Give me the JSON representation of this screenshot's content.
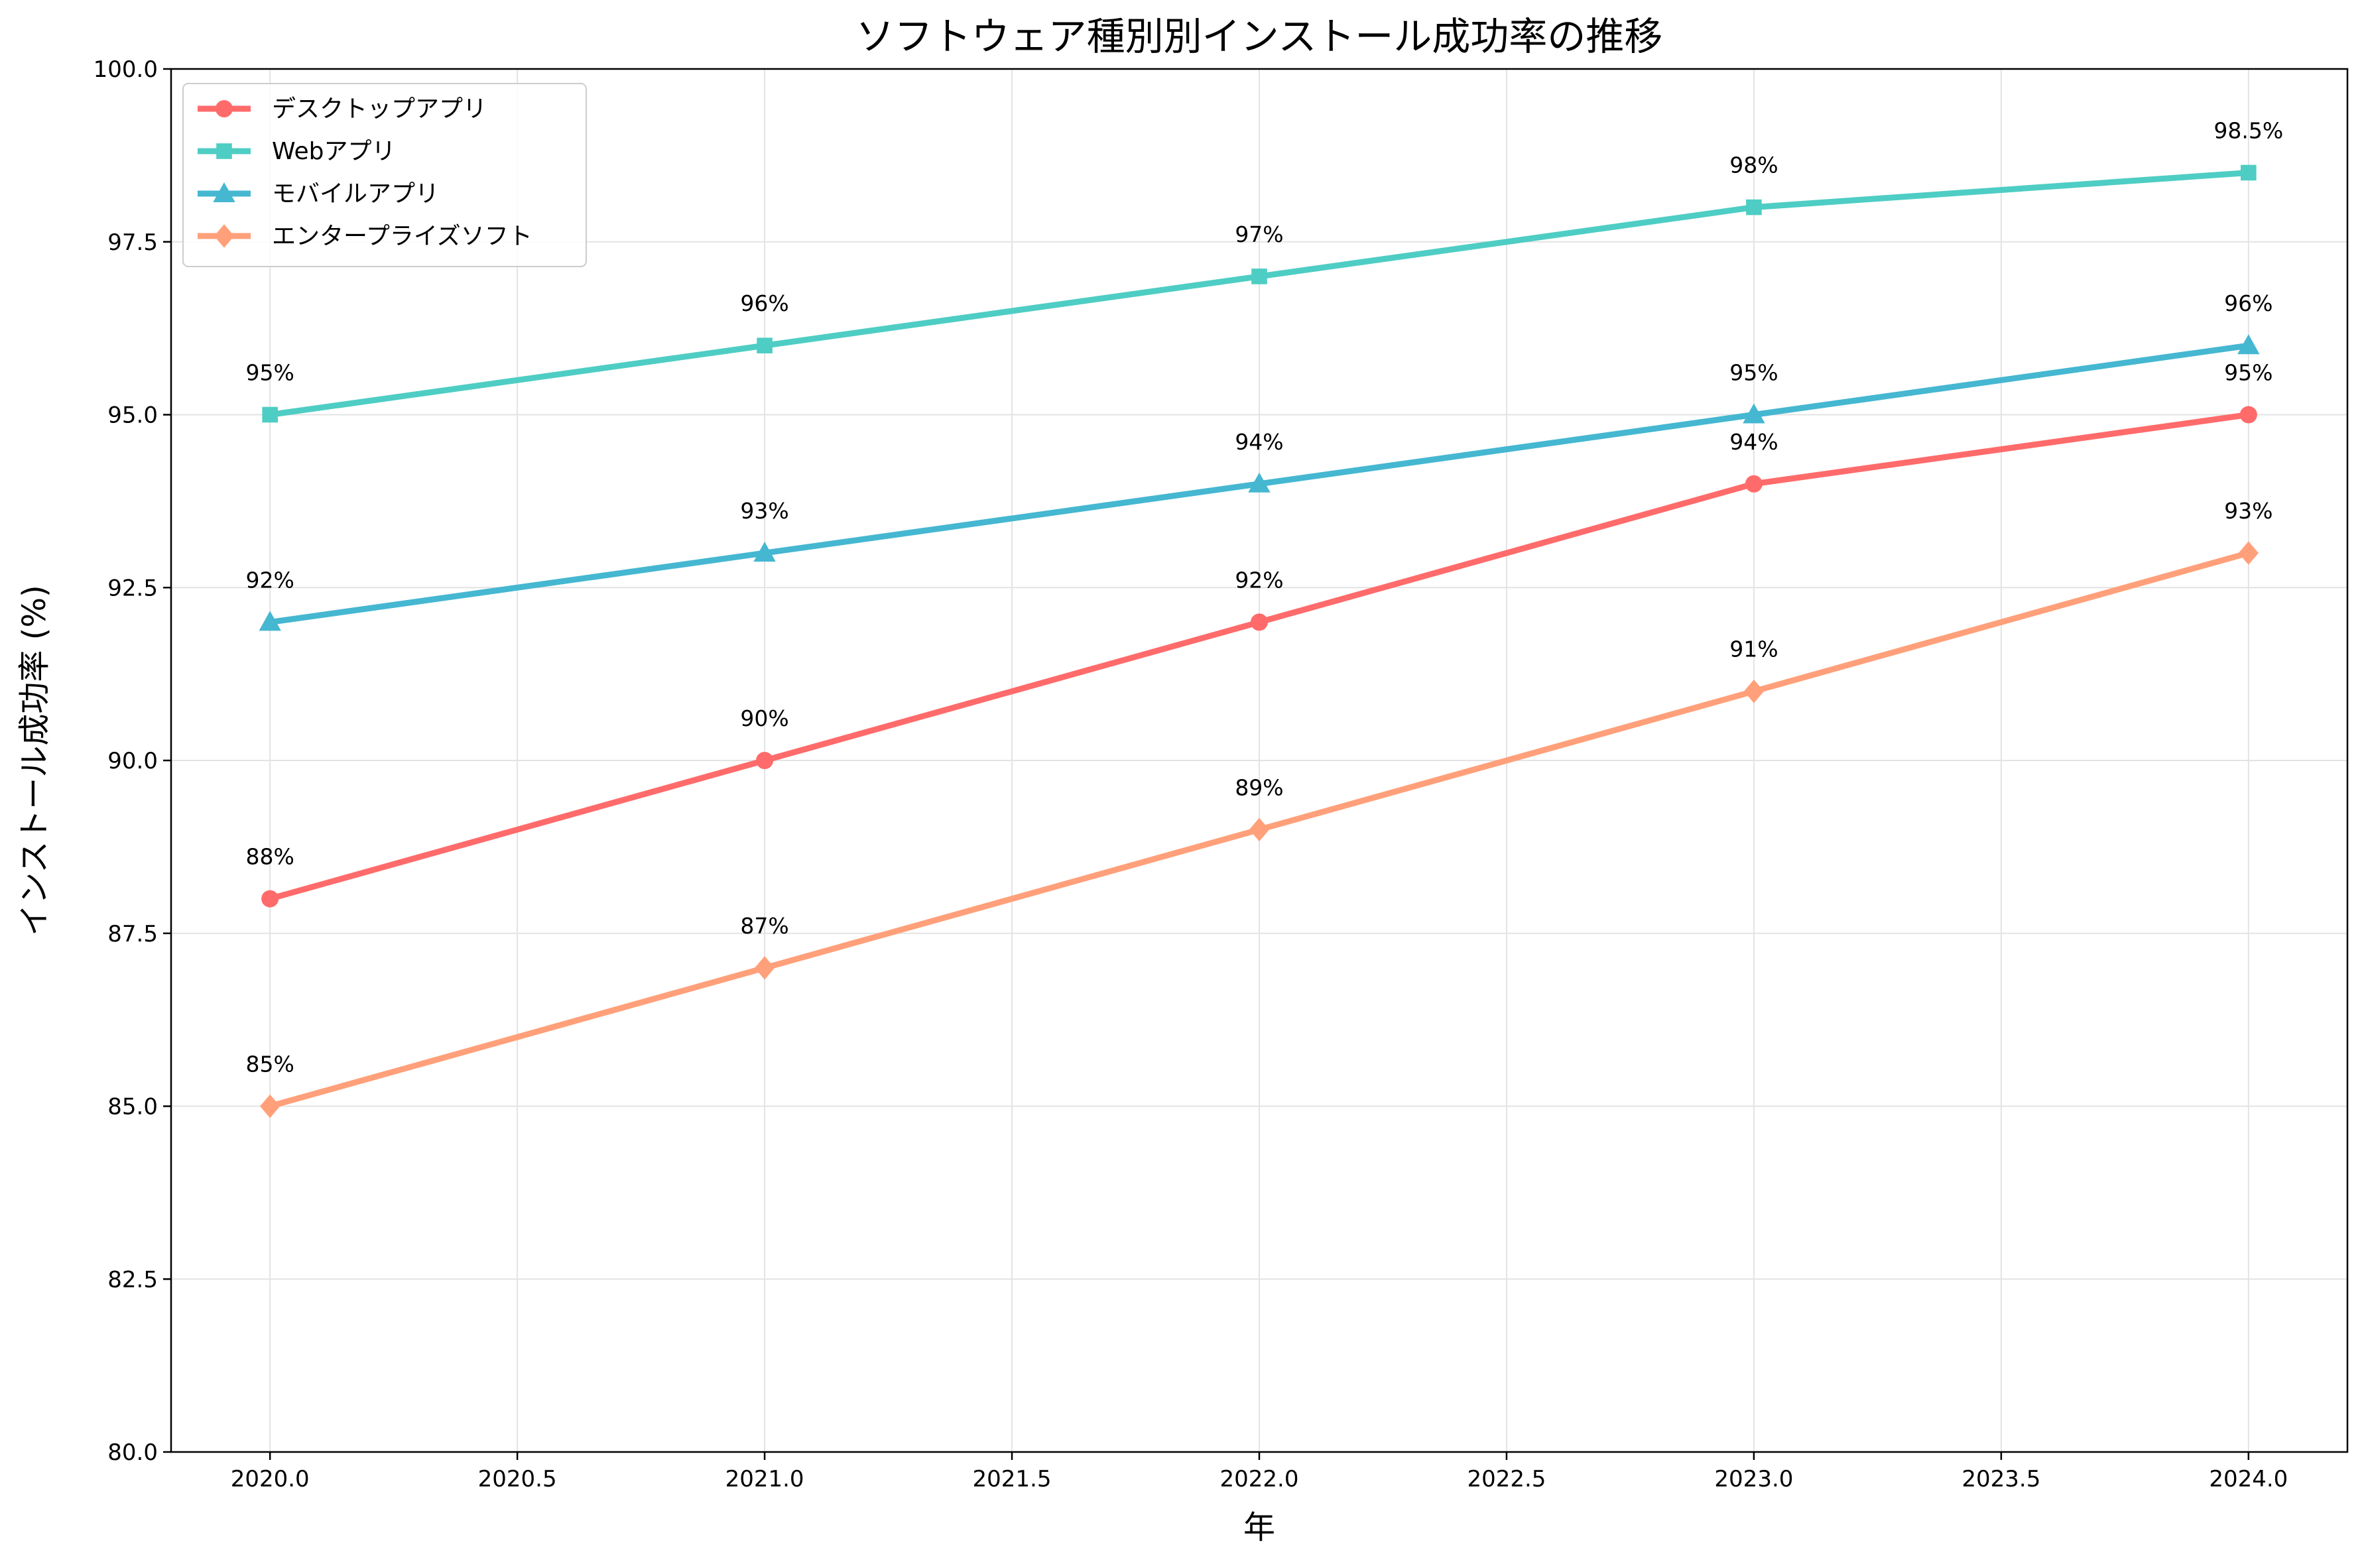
{
  "chart_data": {
    "type": "line",
    "title": "ソフトウェア種別別インストール成功率の推移",
    "xlabel": "年",
    "ylabel": "インストール成功率 (%)",
    "x": [
      2020,
      2021,
      2022,
      2023,
      2024
    ],
    "xlim": [
      2019.8,
      2024.2
    ],
    "ylim": [
      80,
      100
    ],
    "xticks": [
      "2020.0",
      "2020.5",
      "2021.0",
      "2021.5",
      "2022.0",
      "2022.5",
      "2023.0",
      "2023.5",
      "2024.0"
    ],
    "xtick_values": [
      2020.0,
      2020.5,
      2021.0,
      2021.5,
      2022.0,
      2022.5,
      2023.0,
      2023.5,
      2024.0
    ],
    "yticks": [
      "80.0",
      "82.5",
      "85.0",
      "87.5",
      "90.0",
      "92.5",
      "95.0",
      "97.5",
      "100.0"
    ],
    "ytick_values": [
      80.0,
      82.5,
      85.0,
      87.5,
      90.0,
      92.5,
      95.0,
      97.5,
      100.0
    ],
    "grid": true,
    "legend_position": "top-left",
    "series": [
      {
        "name": "デスクトップアプリ",
        "color": "#FF6B6B",
        "marker": "circle",
        "values": [
          88,
          90,
          92,
          94,
          95
        ],
        "labels": [
          "88%",
          "90%",
          "92%",
          "94%",
          "95%"
        ]
      },
      {
        "name": "Webアプリ",
        "color": "#4ECDC4",
        "marker": "square",
        "values": [
          95,
          96,
          97,
          98,
          98.5
        ],
        "labels": [
          "95%",
          "96%",
          "97%",
          "98%",
          "98.5%"
        ]
      },
      {
        "name": "モバイルアプリ",
        "color": "#45B7D1",
        "marker": "triangle",
        "values": [
          92,
          93,
          94,
          95,
          96
        ],
        "labels": [
          "92%",
          "93%",
          "94%",
          "95%",
          "96%"
        ]
      },
      {
        "name": "エンタープライズソフト",
        "color": "#FFA07A",
        "marker": "diamond",
        "values": [
          85,
          87,
          89,
          91,
          93
        ],
        "labels": [
          "85%",
          "87%",
          "89%",
          "91%",
          "93%"
        ]
      }
    ]
  }
}
